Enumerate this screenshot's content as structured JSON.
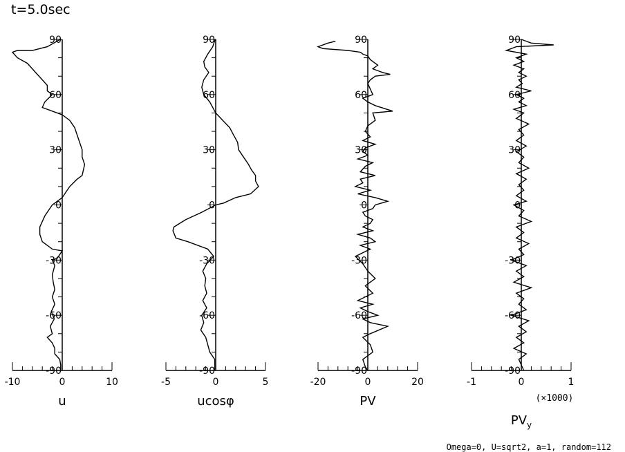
{
  "header": {
    "time_label": "t=5.0sec"
  },
  "footer": {
    "params": "Omega=0, U=sqrt2, a=1, random=112"
  },
  "chart_data": [
    {
      "type": "line",
      "id": "u",
      "xlabel": "u",
      "xlabel_sub": "",
      "multiplier": "",
      "xlim": [
        -10,
        10
      ],
      "xticks": [
        "-10",
        "0",
        "10"
      ],
      "xtick_values": [
        -10,
        0,
        10
      ],
      "ylim": [
        -90,
        90
      ],
      "yticks": [
        "90",
        "60",
        "30",
        "0",
        "-30",
        "-60",
        "-90"
      ],
      "ytick_values": [
        90,
        60,
        30,
        0,
        -30,
        -60,
        -90
      ],
      "grid": false,
      "x": [
        -0.4,
        -3,
        -6,
        -9,
        -10,
        -9,
        -7,
        -6,
        -5,
        -4,
        -3,
        -3,
        -2,
        -3.5,
        -4,
        -2,
        0,
        1.5,
        2.5,
        3,
        3.5,
        4,
        4,
        4.5,
        4,
        3,
        1.5,
        0,
        -2,
        -3.5,
        -4.5,
        -4.5,
        -4,
        -2,
        0,
        -1,
        -2,
        -1.5,
        -2,
        -1.8,
        -1.5,
        -2,
        -1.5,
        -2.2,
        -1.6,
        -2.4,
        -2,
        -3,
        -2,
        -1.5,
        -1.5,
        -0.5,
        -0.3,
        -0.3
      ],
      "y": [
        90,
        86,
        84,
        84,
        83,
        80,
        77,
        74,
        71,
        68,
        65,
        62,
        60,
        56,
        53,
        51,
        49,
        46,
        42,
        38,
        34,
        30,
        26,
        22,
        16,
        14,
        10,
        4,
        0,
        -6,
        -12,
        -16,
        -20,
        -24,
        -25,
        -29,
        -30,
        -33,
        -38,
        -42,
        -46,
        -50,
        -54,
        -58,
        -62,
        -66,
        -70,
        -72,
        -75,
        -78,
        -81,
        -84,
        -87,
        -90
      ]
    },
    {
      "type": "line",
      "id": "ucos",
      "xlabel": "ucosφ",
      "xlabel_sub": "",
      "multiplier": "",
      "xlim": [
        -5,
        5
      ],
      "xticks": [
        "-5",
        "0",
        "5"
      ],
      "xtick_values": [
        -5,
        0,
        5
      ],
      "ylim": [
        -90,
        90
      ],
      "yticks": [
        "90",
        "60",
        "30",
        "0",
        "-30",
        "-60",
        "-90"
      ],
      "ytick_values": [
        90,
        60,
        30,
        0,
        -30,
        -60,
        -90
      ],
      "grid": false,
      "x": [
        -0.05,
        -0.3,
        -0.8,
        -1.2,
        -1.1,
        -0.7,
        -1.2,
        -1.4,
        -1.2,
        -0.6,
        -0.2,
        0,
        0.7,
        1.4,
        1.8,
        2.2,
        2.3,
        2.8,
        3.3,
        3.6,
        4,
        4,
        4.3,
        3.5,
        2,
        0.8,
        0,
        -1.4,
        -3,
        -4.2,
        -4.3,
        -4,
        -2.8,
        -0.8,
        -0.2,
        -0.9,
        -1.3,
        -1,
        -1.1,
        -0.9,
        -1.3,
        -0.9,
        -1.4,
        -1.2,
        -1.5,
        -1,
        -0.8,
        -0.6,
        -0.1,
        -0.1
      ],
      "y": [
        90,
        86,
        82,
        78,
        75,
        72,
        68,
        64,
        60,
        56,
        52,
        50,
        46,
        42,
        38,
        34,
        30,
        26,
        22,
        19,
        16,
        13,
        10,
        6,
        4,
        1,
        0,
        -4,
        -8,
        -12,
        -14,
        -18,
        -20,
        -24,
        -28,
        -32,
        -36,
        -40,
        -44,
        -48,
        -52,
        -56,
        -60,
        -64,
        -68,
        -72,
        -76,
        -80,
        -84,
        -90
      ]
    },
    {
      "type": "line",
      "id": "pv",
      "xlabel": "PV",
      "xlabel_sub": "",
      "multiplier": "",
      "xlim": [
        -20,
        20
      ],
      "xticks": [
        "-20",
        "0",
        "20"
      ],
      "xtick_values": [
        -20,
        0,
        20
      ],
      "ylim": [
        -90,
        90
      ],
      "yticks": [
        "90",
        "60",
        "30",
        "0",
        "-30",
        "-60",
        "-90"
      ],
      "ytick_values": [
        90,
        60,
        30,
        0,
        -30,
        -60,
        -90
      ],
      "grid": false,
      "x": [
        -13,
        -16,
        -20,
        -18,
        -8,
        -3,
        -2,
        0,
        1,
        4,
        2,
        6,
        9,
        3,
        1,
        0,
        1,
        2,
        -2,
        0,
        3,
        10,
        2,
        3,
        0,
        -1,
        1,
        -2,
        3,
        -1,
        -2,
        0,
        -4,
        2,
        -1,
        -3,
        3,
        -3,
        -2,
        -5,
        1,
        -4,
        3,
        8,
        3,
        2,
        -2,
        -1,
        2,
        1,
        -2,
        2,
        -4,
        1,
        3,
        -3,
        1,
        -5,
        -2,
        0,
        3,
        -1,
        2,
        -4,
        2,
        -3,
        0,
        4,
        -2,
        1,
        8,
        1,
        -2,
        1,
        2,
        -2,
        -1,
        0
      ],
      "y": [
        89,
        88,
        86,
        85,
        84,
        83,
        82,
        81,
        79,
        76,
        74,
        72,
        71,
        70,
        68,
        66,
        63,
        60,
        58,
        56,
        54,
        51,
        50,
        46,
        43,
        40,
        37,
        35,
        33,
        31,
        29,
        27,
        25,
        23,
        21,
        18,
        16,
        14,
        12,
        10,
        8,
        6,
        4,
        2,
        0,
        -2,
        -4,
        -6,
        -8,
        -10,
        -12,
        -14,
        -16,
        -18,
        -20,
        -22,
        -24,
        -28,
        -32,
        -36,
        -40,
        -44,
        -48,
        -52,
        -54,
        -56,
        -58,
        -60,
        -62,
        -64,
        -66,
        -70,
        -72,
        -76,
        -80,
        -84,
        -88,
        -90
      ]
    },
    {
      "type": "line",
      "id": "pvy",
      "xlabel": "PV",
      "xlabel_sub": "y",
      "multiplier": "(×1000)",
      "xlim": [
        -1,
        1
      ],
      "xticks": [
        "-1",
        "0",
        "1"
      ],
      "xtick_values": [
        -1,
        0,
        1
      ],
      "ylim": [
        -90,
        90
      ],
      "yticks": [
        "90",
        "60",
        "30",
        "0",
        "-30",
        "-60",
        "-90"
      ],
      "ytick_values": [
        90,
        60,
        30,
        0,
        -30,
        -60,
        -90
      ],
      "grid": false,
      "x": [
        0,
        0.2,
        0.65,
        -0.1,
        -0.3,
        0.1,
        -0.1,
        0.05,
        -0.15,
        0.05,
        -0.05,
        0.1,
        -0.05,
        0.02,
        -0.1,
        0.2,
        -0.1,
        0.05,
        -0.05,
        0.1,
        -0.15,
        0.05,
        -0.1,
        0.15,
        -0.05,
        0.05,
        -0.1,
        0.1,
        -0.1,
        0.05,
        -0.05,
        0.15,
        -0.1,
        0.1,
        -0.05,
        0.05,
        -0.1,
        0.1,
        -0.15,
        0.05,
        -0.05,
        0.2,
        -0.1,
        0.05,
        -0.1,
        0.15,
        -0.05,
        0.05,
        -0.2,
        0.1,
        -0.1,
        0.05,
        -0.15,
        0.2,
        -0.1,
        0.05,
        -0.05,
        0.1,
        -0.2,
        0.15,
        -0.05,
        0.1,
        -0.1,
        0.05,
        -0.15,
        0.1,
        -0.05,
        0.05
      ],
      "y": [
        90,
        88,
        87,
        86,
        84,
        82,
        80,
        78,
        76,
        74,
        72,
        70,
        68,
        66,
        64,
        62,
        60,
        58,
        56,
        54,
        52,
        50,
        47,
        44,
        41,
        38,
        35,
        32,
        29,
        26,
        23,
        20,
        17,
        14,
        11,
        8,
        5,
        2,
        0,
        -3,
        -6,
        -9,
        -12,
        -15,
        -18,
        -21,
        -24,
        -27,
        -30,
        -33,
        -36,
        -39,
        -42,
        -45,
        -48,
        -51,
        -54,
        -57,
        -60,
        -63,
        -66,
        -69,
        -72,
        -75,
        -78,
        -81,
        -84,
        -90
      ]
    }
  ]
}
